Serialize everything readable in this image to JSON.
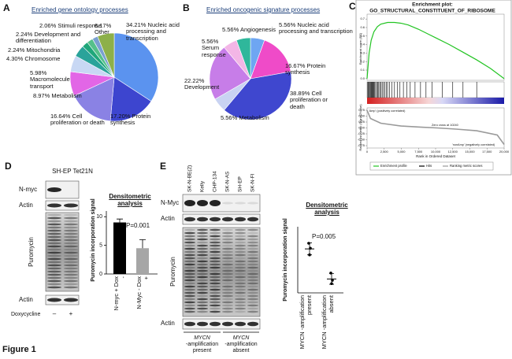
{
  "figure_label": "Figure 1",
  "panel_letters": [
    "A",
    "B",
    "C",
    "D",
    "E"
  ],
  "chart_data": [
    {
      "type": "pie",
      "title": "Enriched gene ontology processes",
      "categories": [
        "Nucleic acid processing and transcription",
        "Protein synthesis",
        "Cell proliferation or death",
        "Metabolism",
        "Macromolecule transport",
        "Chromosome",
        "Mitochondria",
        "Development and differentiation",
        "Stimuli response",
        "Other"
      ],
      "values": [
        34.21,
        17.2,
        16.64,
        8.97,
        5.98,
        4.3,
        2.24,
        2.24,
        2.06,
        6.17
      ],
      "value_labels": [
        "34.21%",
        "17.20%",
        "16.64%",
        "8.97%",
        "5.98%",
        "4.30%",
        "2.24%",
        "2.24%",
        "2.06%",
        "6.17%"
      ],
      "colors": [
        "#5b93ef",
        "#3d45cf",
        "#8a82e4",
        "#e266e6",
        "#c8d8f4",
        "#2aa39a",
        "#1fa77a",
        "#55c08a",
        "#7aa0d0",
        "#8db04a"
      ]
    },
    {
      "type": "pie",
      "title": "Enriched oncogenic signature processes",
      "categories": [
        "Nucleic acid processing and transcription",
        "Protein synthesis",
        "Cell proliferation or death",
        "Metabolism",
        "Development",
        "Serum response",
        "Angiogenesis"
      ],
      "values": [
        5.56,
        16.67,
        38.89,
        5.56,
        22.22,
        5.56,
        5.56
      ],
      "value_labels": [
        "5.56%",
        "16.67%",
        "38.89%",
        "5.56%",
        "22.22%",
        "5.56%",
        "5.56%"
      ],
      "colors": [
        "#6ea6f2",
        "#ef4bc8",
        "#3f47cf",
        "#c9d3f2",
        "#c77de8",
        "#f3b6e6",
        "#2fb79b"
      ]
    },
    {
      "type": "line",
      "title": "Enrichment plot:",
      "subtitle": "GO_STRUCTURAL_CONSTITUENT_OF_RIBOSOME",
      "xlabel": "Rank in Ordered Dataset",
      "ylabel": "Enrichment score (ES)",
      "y2label": "Ranked list metric (Signal2Noise)",
      "xlim": [
        0,
        20000
      ],
      "xticks": [
        0,
        {
          "value": 2500,
          "label": "2,500"
        },
        {
          "value": 5000,
          "label": "5,000"
        },
        {
          "value": 7500,
          "label": "7,500"
        },
        {
          "value": 10000,
          "label": "10,000"
        },
        {
          "value": 12500,
          "label": "12,500"
        },
        {
          "value": 15000,
          "label": "15,000"
        },
        {
          "value": 17500,
          "label": "17,500"
        },
        {
          "value": 20000,
          "label": "20,000"
        }
      ],
      "ylim": [
        -0.02,
        0.72
      ],
      "yticks": [
        {
          "value": 0,
          "label": "0.0"
        },
        0.1,
        0.2,
        0.3,
        0.4,
        0.5,
        0.6,
        0.7
      ],
      "y2lim": [
        -0.85,
        0.85
      ],
      "y2ticks": [
        0.75,
        {
          "value": 0.5,
          "label": "0.50"
        },
        0.25,
        {
          "value": 0,
          "label": "0.00"
        },
        -0.25,
        {
          "value": -0.5,
          "label": "-0.50"
        },
        -0.75
      ],
      "series": [
        {
          "name": "Enrichment profile",
          "color": "#22c422",
          "x": [
            0,
            300,
            600,
            1000,
            1500,
            2000,
            3000,
            4000,
            5000,
            6000,
            7500,
            9000,
            10000,
            12000,
            14000,
            16000,
            18000,
            20000
          ],
          "values": [
            0,
            0.3,
            0.45,
            0.55,
            0.61,
            0.64,
            0.66,
            0.66,
            0.65,
            0.63,
            0.58,
            0.52,
            0.48,
            0.4,
            0.31,
            0.22,
            0.12,
            0
          ]
        },
        {
          "name": "Hits",
          "color": "#000000",
          "x": [
            100,
            200,
            300,
            400,
            500,
            600,
            700,
            800,
            900,
            1000,
            1100,
            1250,
            1400,
            1550,
            1700,
            1850,
            2000,
            2200,
            2400,
            2600,
            2800,
            3000,
            3300,
            3600,
            4000,
            4400,
            4800,
            5300,
            5800,
            6300,
            7000,
            7800,
            8600,
            9500,
            11000,
            12500,
            14000,
            16000
          ]
        },
        {
          "name": "Ranking metric scores",
          "color": "#9a9a9a",
          "axis": "y2",
          "x": [
            0,
            500,
            2000,
            5000,
            8000,
            10240,
            13000,
            16000,
            19000,
            20000
          ],
          "values": [
            0.75,
            0.4,
            0.2,
            0.08,
            0.03,
            0,
            -0.05,
            -0.12,
            -0.3,
            -0.7
          ]
        }
      ],
      "annotations": [
        "'Amp' (positively correlated)",
        "Zero cross at 10240",
        "'nonAmp' (negatively correlated)"
      ]
    },
    {
      "type": "bar",
      "title": "Densitometric analysis",
      "ylabel": "Puromycin incorporation signal",
      "categories": [
        "N-myc + Dox -",
        "N-Myc - Dox +"
      ],
      "values": [
        9,
        4.5
      ],
      "errors": [
        0.6,
        1.5
      ],
      "colors": [
        "#000000",
        "#a6a6a6"
      ],
      "ylim": [
        0,
        11
      ],
      "yticks": [
        0,
        5,
        10
      ],
      "annotations": [
        "P=0.001"
      ]
    },
    {
      "type": "strip",
      "title": "Densitometric analysis",
      "ylabel": "Puromycin incorporation signal",
      "categories": [
        "MYCN -amplification present",
        "MYCN -amplification absent"
      ],
      "values": [
        [
          15,
          13.5,
          11.5
        ],
        [
          6,
          3.8,
          2.8
        ]
      ],
      "means": [
        13.3,
        4.2
      ],
      "errors": [
        1.8,
        1.6
      ],
      "color": "#000000",
      "ylim": [
        0,
        20
      ],
      "annotations": [
        "P=0.005"
      ]
    }
  ],
  "blots": {
    "D": {
      "title": "SH-EP Tet21N",
      "rows": [
        "N-myc",
        "Actin",
        "Puromycin",
        "Actin"
      ],
      "treatment": "Doxycycline",
      "lanes": [
        "–",
        "+"
      ]
    },
    "E": {
      "lanes": [
        "SK-N-BE(2)",
        "Kelly",
        "CHP-134",
        "SK-N-AS",
        "SH-EP",
        "SK-N-FI"
      ],
      "rows": [
        "N-Myc",
        "Actin",
        "Puromycin",
        "Actin"
      ],
      "groups": [
        [
          "MYCN",
          "-amplification",
          "present"
        ],
        [
          "MYCN",
          "-amplification",
          "absent"
        ]
      ]
    }
  }
}
